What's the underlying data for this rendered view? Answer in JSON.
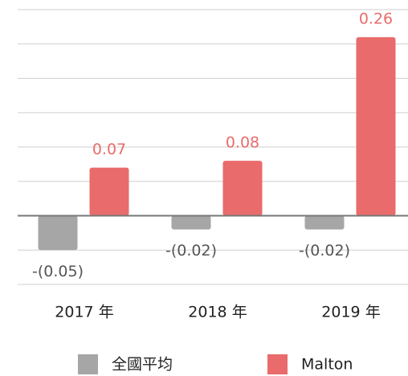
{
  "chart_data": {
    "type": "bar",
    "categories": [
      "2017 年",
      "2018 年",
      "2019 年"
    ],
    "series": [
      {
        "name": "全國平均",
        "color": "#a6a6a6",
        "values": [
          -0.05,
          -0.02,
          -0.02
        ],
        "value_labels": [
          "-(0.05)",
          "-(0.02)",
          "-(0.02)"
        ]
      },
      {
        "name": "Malton",
        "color": "#e96b6b",
        "values": [
          0.07,
          0.08,
          0.26
        ]
      }
    ],
    "ylim": [
      -0.1,
      0.3
    ],
    "yticks": [
      -0.1,
      -0.05,
      0,
      0.05,
      0.1,
      0.15,
      0.2,
      0.25,
      0.3
    ],
    "grid": true
  }
}
